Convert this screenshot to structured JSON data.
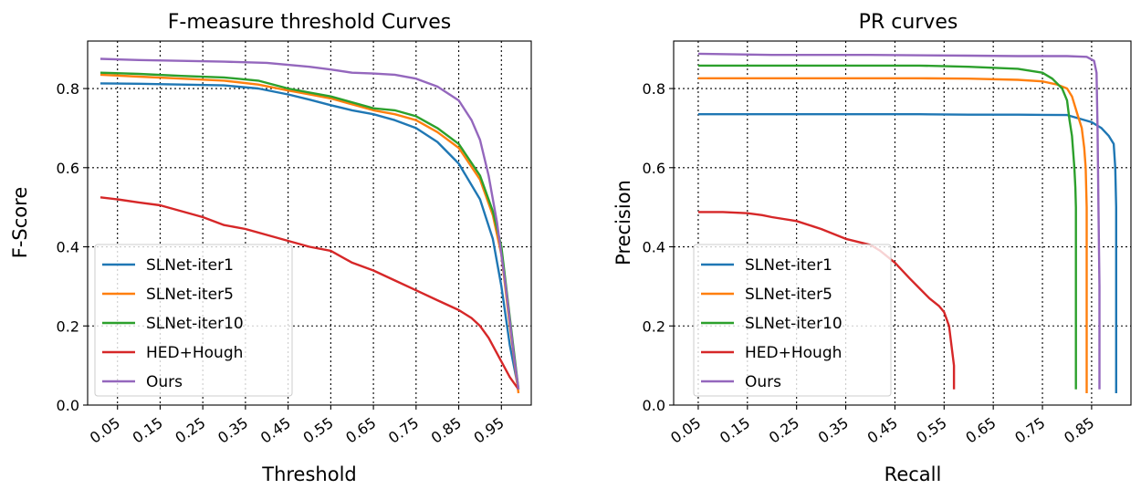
{
  "chart_data": [
    {
      "type": "line",
      "title": "F-measure threshold Curves",
      "xlabel": "Threshold",
      "ylabel": "F-Score",
      "xlim": [
        -0.02,
        1.02
      ],
      "ylim": [
        0.0,
        0.92
      ],
      "xticks": [
        "0.05",
        "0.15",
        "0.25",
        "0.35",
        "0.45",
        "0.55",
        "0.65",
        "0.75",
        "0.85",
        "0.95"
      ],
      "xtick_values": [
        0.05,
        0.15,
        0.25,
        0.35,
        0.45,
        0.55,
        0.65,
        0.75,
        0.85,
        0.95
      ],
      "yticks": [
        "0.0",
        "0.2",
        "0.4",
        "0.6",
        "0.8"
      ],
      "ytick_values": [
        0.0,
        0.2,
        0.4,
        0.6,
        0.8
      ],
      "grid": true,
      "legend": "lower-left",
      "series": [
        {
          "name": "SLNet-iter1",
          "color": "#1f77b4",
          "x": [
            0.01,
            0.1,
            0.2,
            0.3,
            0.38,
            0.45,
            0.5,
            0.55,
            0.6,
            0.65,
            0.7,
            0.75,
            0.8,
            0.85,
            0.9,
            0.93,
            0.95,
            0.97,
            0.99
          ],
          "y": [
            0.813,
            0.812,
            0.81,
            0.808,
            0.8,
            0.785,
            0.772,
            0.758,
            0.745,
            0.735,
            0.72,
            0.7,
            0.665,
            0.61,
            0.52,
            0.42,
            0.3,
            0.15,
            0.04
          ]
        },
        {
          "name": "SLNet-iter5",
          "color": "#ff7f0e",
          "x": [
            0.01,
            0.1,
            0.2,
            0.3,
            0.38,
            0.45,
            0.5,
            0.55,
            0.6,
            0.65,
            0.7,
            0.75,
            0.8,
            0.85,
            0.9,
            0.93,
            0.95,
            0.97,
            0.99
          ],
          "y": [
            0.835,
            0.83,
            0.825,
            0.82,
            0.81,
            0.795,
            0.785,
            0.775,
            0.76,
            0.745,
            0.735,
            0.72,
            0.69,
            0.65,
            0.57,
            0.48,
            0.38,
            0.2,
            0.03
          ]
        },
        {
          "name": "SLNet-iter10",
          "color": "#2ca02c",
          "x": [
            0.01,
            0.1,
            0.2,
            0.3,
            0.38,
            0.45,
            0.5,
            0.55,
            0.6,
            0.65,
            0.7,
            0.75,
            0.8,
            0.85,
            0.9,
            0.93,
            0.95,
            0.97,
            0.99
          ],
          "y": [
            0.84,
            0.837,
            0.832,
            0.828,
            0.82,
            0.8,
            0.79,
            0.78,
            0.765,
            0.75,
            0.745,
            0.73,
            0.7,
            0.66,
            0.58,
            0.49,
            0.4,
            0.22,
            0.04
          ]
        },
        {
          "name": "HED+Hough",
          "color": "#d62728",
          "x": [
            0.01,
            0.05,
            0.1,
            0.15,
            0.2,
            0.25,
            0.3,
            0.35,
            0.4,
            0.45,
            0.5,
            0.55,
            0.6,
            0.65,
            0.7,
            0.75,
            0.8,
            0.85,
            0.88,
            0.9,
            0.92,
            0.95,
            0.97,
            0.99
          ],
          "y": [
            0.525,
            0.52,
            0.512,
            0.505,
            0.49,
            0.475,
            0.455,
            0.445,
            0.43,
            0.415,
            0.4,
            0.39,
            0.36,
            0.34,
            0.315,
            0.29,
            0.265,
            0.24,
            0.22,
            0.2,
            0.17,
            0.11,
            0.07,
            0.04
          ]
        },
        {
          "name": "Ours",
          "color": "#9467bd",
          "x": [
            0.01,
            0.1,
            0.2,
            0.3,
            0.4,
            0.5,
            0.55,
            0.6,
            0.65,
            0.7,
            0.75,
            0.8,
            0.85,
            0.88,
            0.9,
            0.92,
            0.94,
            0.96,
            0.98,
            0.99
          ],
          "y": [
            0.875,
            0.872,
            0.87,
            0.868,
            0.865,
            0.855,
            0.848,
            0.84,
            0.838,
            0.835,
            0.825,
            0.805,
            0.77,
            0.72,
            0.67,
            0.58,
            0.46,
            0.3,
            0.12,
            0.04
          ]
        }
      ]
    },
    {
      "type": "line",
      "title": "PR curves",
      "xlabel": "Recall",
      "ylabel": "Precision",
      "xlim": [
        0.0,
        0.93
      ],
      "ylim": [
        0.0,
        0.92
      ],
      "xticks": [
        "0.05",
        "0.15",
        "0.25",
        "0.35",
        "0.45",
        "0.55",
        "0.65",
        "0.75",
        "0.85"
      ],
      "xtick_values": [
        0.05,
        0.15,
        0.25,
        0.35,
        0.45,
        0.55,
        0.65,
        0.75,
        0.85
      ],
      "yticks": [
        "0.0",
        "0.2",
        "0.4",
        "0.6",
        "0.8"
      ],
      "ytick_values": [
        0.0,
        0.2,
        0.4,
        0.6,
        0.8
      ],
      "grid": true,
      "legend": "lower-left",
      "series": [
        {
          "name": "SLNet-iter1",
          "color": "#1f77b4",
          "x": [
            0.05,
            0.3,
            0.5,
            0.6,
            0.7,
            0.8,
            0.85,
            0.87,
            0.885,
            0.895,
            0.898,
            0.9,
            0.9
          ],
          "y": [
            0.735,
            0.735,
            0.735,
            0.734,
            0.734,
            0.733,
            0.715,
            0.7,
            0.68,
            0.66,
            0.6,
            0.5,
            0.03
          ]
        },
        {
          "name": "SLNet-iter5",
          "color": "#ff7f0e",
          "x": [
            0.05,
            0.3,
            0.5,
            0.6,
            0.7,
            0.75,
            0.78,
            0.8,
            0.81,
            0.82,
            0.83,
            0.835,
            0.838,
            0.84,
            0.84
          ],
          "y": [
            0.826,
            0.826,
            0.826,
            0.825,
            0.822,
            0.818,
            0.81,
            0.8,
            0.78,
            0.74,
            0.7,
            0.65,
            0.6,
            0.5,
            0.03
          ]
        },
        {
          "name": "SLNet-iter10",
          "color": "#2ca02c",
          "x": [
            0.05,
            0.3,
            0.5,
            0.6,
            0.7,
            0.75,
            0.77,
            0.79,
            0.8,
            0.805,
            0.81,
            0.815,
            0.817,
            0.818,
            0.818
          ],
          "y": [
            0.858,
            0.858,
            0.858,
            0.855,
            0.85,
            0.84,
            0.825,
            0.8,
            0.77,
            0.72,
            0.68,
            0.6,
            0.55,
            0.5,
            0.04
          ]
        },
        {
          "name": "HED+Hough",
          "color": "#d62728",
          "x": [
            0.05,
            0.1,
            0.15,
            0.18,
            0.2,
            0.25,
            0.3,
            0.35,
            0.4,
            0.42,
            0.45,
            0.48,
            0.5,
            0.52,
            0.54,
            0.55,
            0.56,
            0.565,
            0.57,
            0.57
          ],
          "y": [
            0.488,
            0.488,
            0.485,
            0.48,
            0.475,
            0.465,
            0.445,
            0.42,
            0.405,
            0.39,
            0.36,
            0.32,
            0.295,
            0.27,
            0.25,
            0.235,
            0.2,
            0.15,
            0.1,
            0.04
          ]
        },
        {
          "name": "Ours",
          "color": "#9467bd",
          "x": [
            0.05,
            0.2,
            0.4,
            0.6,
            0.7,
            0.8,
            0.84,
            0.855,
            0.86,
            0.862,
            0.864,
            0.866,
            0.866
          ],
          "y": [
            0.888,
            0.885,
            0.885,
            0.883,
            0.882,
            0.882,
            0.88,
            0.87,
            0.84,
            0.7,
            0.5,
            0.3,
            0.04
          ]
        }
      ]
    }
  ]
}
